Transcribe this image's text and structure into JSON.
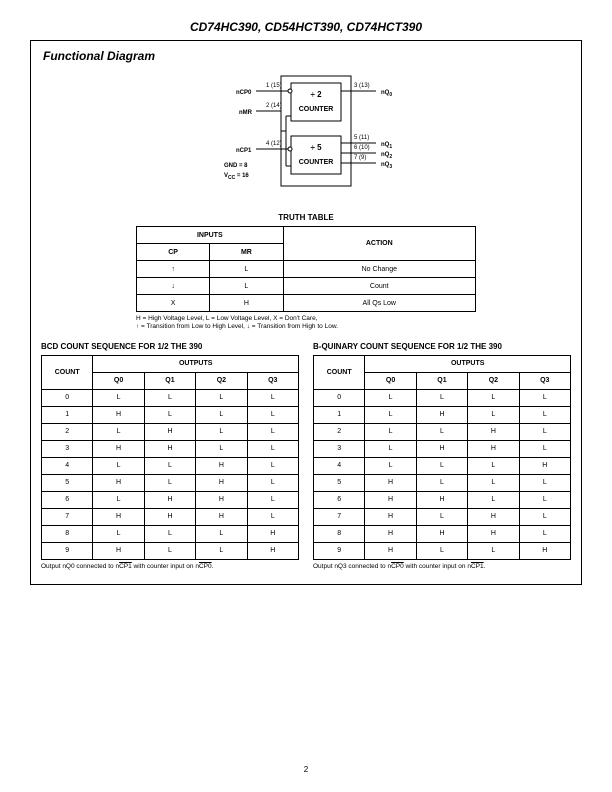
{
  "header": "CD74HC390, CD54HCT390, CD74HCT390",
  "section_title": "Functional Diagram",
  "diagram": {
    "box1_top": "÷ 2",
    "box1_bottom": "COUNTER",
    "box2_top": "÷ 5",
    "box2_bottom": "COUNTER",
    "ncp0": "nCP0",
    "nmr": "nMR",
    "ncp1": "nCP1",
    "gnd": "GND = 8",
    "vcc": "V",
    "vcc_sub": "CC",
    "vcc_val": " = 16",
    "pin1": "1 (15)",
    "pin2": "2 (14)",
    "pin4": "4 (12)",
    "pin3": "3 (13)",
    "pin5": "5 (11)",
    "pin6": "6 (10)",
    "pin7": "7 (9)",
    "nq0": "nQ",
    "nq0s": "0",
    "nq1s": "1",
    "nq2s": "2",
    "nq3s": "3"
  },
  "truth_title": "TRUTH TABLE",
  "truth": {
    "inputs": "INPUTS",
    "cp": "CP",
    "mr": "MR",
    "action": "ACTION",
    "rows": [
      {
        "cp": "↑",
        "mr": "L",
        "action": "No Change"
      },
      {
        "cp": "↓",
        "mr": "L",
        "action": "Count"
      },
      {
        "cp": "X",
        "mr": "H",
        "action": "All Qs Low"
      }
    ]
  },
  "notes": {
    "l1": "H = High Voltage Level, L = Low Voltage Level, X = Don't Care,",
    "l2": "↑ = Transition from Low to High Level, ↓ = Transition from High to Low."
  },
  "bcd": {
    "title": "BCD COUNT SEQUENCE FOR 1/2 THE 390",
    "outputs": "OUTPUTS",
    "count": "COUNT",
    "q0": "Q0",
    "q1": "Q1",
    "q2": "Q2",
    "q3": "Q3",
    "rows": [
      {
        "c": "0",
        "q0": "L",
        "q1": "L",
        "q2": "L",
        "q3": "L"
      },
      {
        "c": "1",
        "q0": "H",
        "q1": "L",
        "q2": "L",
        "q3": "L"
      },
      {
        "c": "2",
        "q0": "L",
        "q1": "H",
        "q2": "L",
        "q3": "L"
      },
      {
        "c": "3",
        "q0": "H",
        "q1": "H",
        "q2": "L",
        "q3": "L"
      },
      {
        "c": "4",
        "q0": "L",
        "q1": "L",
        "q2": "H",
        "q3": "L"
      },
      {
        "c": "5",
        "q0": "H",
        "q1": "L",
        "q2": "H",
        "q3": "L"
      },
      {
        "c": "6",
        "q0": "L",
        "q1": "H",
        "q2": "H",
        "q3": "L"
      },
      {
        "c": "7",
        "q0": "H",
        "q1": "H",
        "q2": "H",
        "q3": "L"
      },
      {
        "c": "8",
        "q0": "L",
        "q1": "L",
        "q2": "L",
        "q3": "H"
      },
      {
        "c": "9",
        "q0": "H",
        "q1": "L",
        "q2": "L",
        "q3": "H"
      }
    ],
    "note_a": "Output nQ0 connected to n",
    "note_b": "CP1",
    "note_c": " with counter input on n",
    "note_d": "CP0",
    "note_e": "."
  },
  "biq": {
    "title": "B-QUINARY COUNT SEQUENCE FOR 1/2 THE 390",
    "rows": [
      {
        "c": "0",
        "q0": "L",
        "q1": "L",
        "q2": "L",
        "q3": "L"
      },
      {
        "c": "1",
        "q0": "L",
        "q1": "H",
        "q2": "L",
        "q3": "L"
      },
      {
        "c": "2",
        "q0": "L",
        "q1": "L",
        "q2": "H",
        "q3": "L"
      },
      {
        "c": "3",
        "q0": "L",
        "q1": "H",
        "q2": "H",
        "q3": "L"
      },
      {
        "c": "4",
        "q0": "L",
        "q1": "L",
        "q2": "L",
        "q3": "H"
      },
      {
        "c": "5",
        "q0": "H",
        "q1": "L",
        "q2": "L",
        "q3": "L"
      },
      {
        "c": "6",
        "q0": "H",
        "q1": "H",
        "q2": "L",
        "q3": "L"
      },
      {
        "c": "7",
        "q0": "H",
        "q1": "L",
        "q2": "H",
        "q3": "L"
      },
      {
        "c": "8",
        "q0": "H",
        "q1": "H",
        "q2": "H",
        "q3": "L"
      },
      {
        "c": "9",
        "q0": "H",
        "q1": "L",
        "q2": "L",
        "q3": "H"
      }
    ],
    "note_a": "Output nQ3 connected to n",
    "note_b": "CP0",
    "note_c": " with counter input on n",
    "note_d": "CP1",
    "note_e": "."
  },
  "page_num": "2"
}
